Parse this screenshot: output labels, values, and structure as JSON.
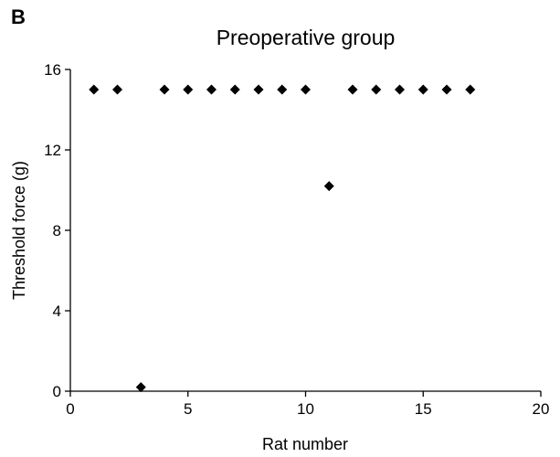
{
  "panel_label": "B",
  "chart_data": {
    "type": "scatter",
    "title": "Preoperative group",
    "xlabel": "Rat number",
    "ylabel": "Threshold force (g)",
    "xlim": [
      0,
      20
    ],
    "ylim": [
      0,
      16
    ],
    "xticks": [
      "0",
      "5",
      "10",
      "15",
      "20"
    ],
    "yticks": [
      "0",
      "4",
      "8",
      "12",
      "16"
    ],
    "grid": false,
    "marker": "diamond",
    "marker_color": "#000000",
    "points": [
      {
        "x": 1,
        "y": 15
      },
      {
        "x": 2,
        "y": 15
      },
      {
        "x": 3,
        "y": 0.2
      },
      {
        "x": 4,
        "y": 15
      },
      {
        "x": 5,
        "y": 15
      },
      {
        "x": 6,
        "y": 15
      },
      {
        "x": 7,
        "y": 15
      },
      {
        "x": 8,
        "y": 15
      },
      {
        "x": 9,
        "y": 15
      },
      {
        "x": 10,
        "y": 15
      },
      {
        "x": 11,
        "y": 10.2
      },
      {
        "x": 12,
        "y": 15
      },
      {
        "x": 13,
        "y": 15
      },
      {
        "x": 14,
        "y": 15
      },
      {
        "x": 15,
        "y": 15
      },
      {
        "x": 16,
        "y": 15
      },
      {
        "x": 17,
        "y": 15
      }
    ]
  }
}
